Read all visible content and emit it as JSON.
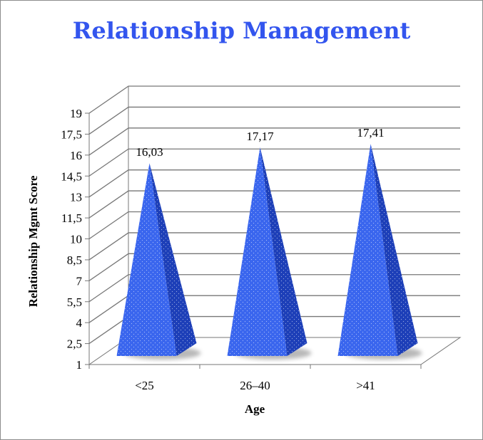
{
  "chart_data": {
    "type": "bar",
    "bar_shape": "pyramid",
    "title": "Relationship Management",
    "xlabel": "Age",
    "ylabel": "Relationship Mgmt Score",
    "categories": [
      "<25",
      "26–40",
      ">41"
    ],
    "values": [
      16.03,
      17.17,
      17.41
    ],
    "value_labels": [
      "16,03",
      "17,17",
      "17,41"
    ],
    "y_ticks": [
      "1",
      "2,5",
      "4",
      "5,5",
      "7",
      "8,5",
      "10",
      "11,5",
      "13",
      "14,5",
      "16",
      "17,5",
      "19"
    ],
    "ylim": [
      1,
      19
    ],
    "grid": true,
    "legend": "none",
    "colors": {
      "title": "#3355ee",
      "bar_front": "#3a66ee",
      "bar_side": "#1d3fb8",
      "grid": "#777777"
    }
  }
}
